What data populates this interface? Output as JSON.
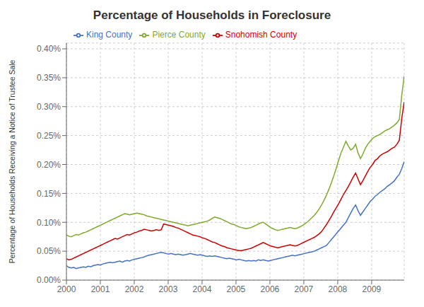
{
  "chart_data": {
    "type": "line",
    "title": "Percentage of Households in Foreclosure",
    "y_label": "Percentage of Households Receiving a Notice of Trustee Sale",
    "xlim": [
      2000.0,
      2009.96
    ],
    "xticks": [
      2000,
      2001,
      2002,
      2003,
      2004,
      2005,
      2006,
      2007,
      2008,
      2009
    ],
    "ylim": [
      0,
      0.0041
    ],
    "yticks": [
      {
        "value": 0.0,
        "label": "0.00%"
      },
      {
        "value": 0.0005,
        "label": "0.05%"
      },
      {
        "value": 0.001,
        "label": "0.10%"
      },
      {
        "value": 0.0015,
        "label": "0.15%"
      },
      {
        "value": 0.002,
        "label": "0.20%"
      },
      {
        "value": 0.0025,
        "label": "0.25%"
      },
      {
        "value": 0.003,
        "label": "0.30%"
      },
      {
        "value": 0.0035,
        "label": "0.35%"
      },
      {
        "value": 0.004,
        "label": "0.40%"
      }
    ],
    "grid": true,
    "legend": "upper left",
    "x": [
      2000.0,
      2000.07165,
      2000.14331,
      2000.21496,
      2000.28662,
      2000.35827,
      2000.42993,
      2000.50158,
      2000.57324,
      2000.64489,
      2000.71655,
      2000.7882,
      2000.85986,
      2000.93151,
      2001.00317,
      2001.07482,
      2001.14647,
      2001.21813,
      2001.28978,
      2001.36144,
      2001.43309,
      2001.50475,
      2001.5764,
      2001.64806,
      2001.71971,
      2001.79137,
      2001.86302,
      2001.93468,
      2002.00633,
      2002.07799,
      2002.14964,
      2002.22129,
      2002.29295,
      2002.3646,
      2002.43626,
      2002.50791,
      2002.57957,
      2002.65122,
      2002.72288,
      2002.79453,
      2002.86619,
      2002.93784,
      2003.0095,
      2003.08115,
      2003.15281,
      2003.22446,
      2003.29612,
      2003.36777,
      2003.43942,
      2003.51108,
      2003.58273,
      2003.65439,
      2003.72604,
      2003.7977,
      2003.86935,
      2003.94101,
      2004.01266,
      2004.08432,
      2004.15597,
      2004.22763,
      2004.29928,
      2004.37094,
      2004.44259,
      2004.51424,
      2004.5859,
      2004.65755,
      2004.72921,
      2004.80086,
      2004.87252,
      2004.94417,
      2005.01583,
      2005.08748,
      2005.15914,
      2005.23079,
      2005.30245,
      2005.3741,
      2005.44576,
      2005.51741,
      2005.58906,
      2005.66072,
      2005.73237,
      2005.80403,
      2005.87568,
      2005.94734,
      2006.01899,
      2006.09065,
      2006.1623,
      2006.23396,
      2006.30561,
      2006.37727,
      2006.44892,
      2006.52058,
      2006.59223,
      2006.66388,
      2006.73554,
      2006.80719,
      2006.87885,
      2006.9505,
      2007.02216,
      2007.09381,
      2007.16547,
      2007.23712,
      2007.30878,
      2007.38043,
      2007.45209,
      2007.52374,
      2007.5954,
      2007.66705,
      2007.73871,
      2007.81036,
      2007.88201,
      2007.95367,
      2008.02532,
      2008.09698,
      2008.16863,
      2008.24029,
      2008.31194,
      2008.3836,
      2008.45525,
      2008.52691,
      2008.59856,
      2008.67022,
      2008.74187,
      2008.81353,
      2008.88518,
      2008.95683,
      2009.02849,
      2009.10014,
      2009.1718,
      2009.24345,
      2009.31511,
      2009.38676,
      2009.45842,
      2009.53007,
      2009.60173,
      2009.67338,
      2009.74504,
      2009.81669,
      2009.88835,
      2009.96
    ],
    "series": [
      {
        "name": "King County",
        "color": "#4472C4",
        "values": [
          0.00025,
          0.00022,
          0.00021,
          0.00022,
          0.0002,
          0.00021,
          0.00022,
          0.00023,
          0.00022,
          0.00024,
          0.00023,
          0.00025,
          0.00026,
          0.00027,
          0.00026,
          0.00028,
          0.00029,
          0.0003,
          0.00031,
          0.0003,
          0.00031,
          0.00032,
          0.00033,
          0.00031,
          0.00033,
          0.00034,
          0.00033,
          0.00035,
          0.00036,
          0.00037,
          0.00038,
          0.00039,
          0.0004,
          0.00042,
          0.00043,
          0.00044,
          0.00045,
          0.00046,
          0.00047,
          0.00048,
          0.00047,
          0.00046,
          0.00045,
          0.00046,
          0.00045,
          0.00044,
          0.00045,
          0.00044,
          0.00043,
          0.00044,
          0.00045,
          0.00046,
          0.00045,
          0.00044,
          0.00043,
          0.00044,
          0.00043,
          0.00042,
          0.00041,
          0.00042,
          0.00041,
          0.00042,
          0.00041,
          0.0004,
          0.00039,
          0.00038,
          0.00037,
          0.00038,
          0.00037,
          0.00036,
          0.00035,
          0.00036,
          0.00035,
          0.00034,
          0.00033,
          0.00034,
          0.00033,
          0.00034,
          0.00033,
          0.00035,
          0.00034,
          0.00035,
          0.00034,
          0.00033,
          0.00034,
          0.00035,
          0.00036,
          0.00037,
          0.00038,
          0.00039,
          0.0004,
          0.00041,
          0.00042,
          0.00043,
          0.00042,
          0.00043,
          0.00044,
          0.00045,
          0.00046,
          0.00047,
          0.00048,
          0.00049,
          0.0005,
          0.00052,
          0.00054,
          0.00056,
          0.00058,
          0.0006,
          0.00065,
          0.0007,
          0.00075,
          0.0008,
          0.00085,
          0.0009,
          0.00095,
          0.001,
          0.00108,
          0.00116,
          0.00124,
          0.0013,
          0.0012,
          0.00112,
          0.00118,
          0.00124,
          0.0013,
          0.00136,
          0.0014,
          0.00145,
          0.00148,
          0.00152,
          0.00155,
          0.00158,
          0.00162,
          0.00165,
          0.00168,
          0.00172,
          0.00178,
          0.00183,
          0.00193,
          0.00205
        ]
      },
      {
        "name": "Snohomish County",
        "color": "#CC0000",
        "values": [
          0.00037,
          0.00035,
          0.00036,
          0.00038,
          0.0004,
          0.00042,
          0.00044,
          0.00046,
          0.00048,
          0.0005,
          0.00052,
          0.00054,
          0.00056,
          0.00058,
          0.0006,
          0.00062,
          0.00064,
          0.00066,
          0.00068,
          0.0007,
          0.00072,
          0.00071,
          0.00073,
          0.00075,
          0.00077,
          0.00079,
          0.00078,
          0.0008,
          0.00082,
          0.00083,
          0.00085,
          0.00086,
          0.00088,
          0.00087,
          0.00086,
          0.00085,
          0.00086,
          0.00087,
          0.00086,
          0.00087,
          0.00097,
          0.00096,
          0.00095,
          0.00094,
          0.00093,
          0.00091,
          0.0009,
          0.00088,
          0.00086,
          0.00084,
          0.00082,
          0.0008,
          0.00078,
          0.00077,
          0.00076,
          0.00075,
          0.00073,
          0.00072,
          0.0007,
          0.00068,
          0.00066,
          0.00065,
          0.00063,
          0.00061,
          0.00059,
          0.00058,
          0.00056,
          0.00055,
          0.00054,
          0.00053,
          0.00052,
          0.00051,
          0.00051,
          0.00052,
          0.00053,
          0.00054,
          0.00055,
          0.00057,
          0.00059,
          0.00061,
          0.00063,
          0.00065,
          0.00063,
          0.00061,
          0.00059,
          0.00058,
          0.00057,
          0.00056,
          0.00057,
          0.00058,
          0.00059,
          0.0006,
          0.00061,
          0.0006,
          0.00059,
          0.0006,
          0.00062,
          0.00064,
          0.00066,
          0.00068,
          0.0007,
          0.00072,
          0.00074,
          0.00077,
          0.0008,
          0.00084,
          0.0009,
          0.00096,
          0.00103,
          0.0011,
          0.00118,
          0.00125,
          0.00132,
          0.0014,
          0.00148,
          0.00155,
          0.00162,
          0.0017,
          0.00178,
          0.00185,
          0.00175,
          0.00165,
          0.00172,
          0.0018,
          0.00188,
          0.00195,
          0.002,
          0.00207,
          0.0021,
          0.00215,
          0.00218,
          0.0022,
          0.00222,
          0.00225,
          0.00228,
          0.0023,
          0.00235,
          0.00242,
          0.0028,
          0.00308
        ]
      },
      {
        "name": "Pierce County",
        "color": "#7EAA2C",
        "values": [
          0.00078,
          0.00076,
          0.00075,
          0.00077,
          0.00079,
          0.00078,
          0.0008,
          0.00082,
          0.00083,
          0.00085,
          0.00087,
          0.00089,
          0.00091,
          0.00093,
          0.00095,
          0.00097,
          0.00099,
          0.00101,
          0.00103,
          0.00105,
          0.00107,
          0.00109,
          0.00111,
          0.00113,
          0.00115,
          0.00114,
          0.00113,
          0.00114,
          0.00115,
          0.00116,
          0.00115,
          0.00114,
          0.00113,
          0.00111,
          0.0011,
          0.00109,
          0.00108,
          0.00107,
          0.00106,
          0.00105,
          0.00104,
          0.00103,
          0.00102,
          0.00101,
          0.001,
          0.00099,
          0.00098,
          0.00097,
          0.00096,
          0.00095,
          0.00094,
          0.00095,
          0.00096,
          0.00097,
          0.00098,
          0.00099,
          0.001,
          0.00101,
          0.00102,
          0.00104,
          0.00107,
          0.00109,
          0.00108,
          0.00107,
          0.00105,
          0.00103,
          0.00101,
          0.00099,
          0.00097,
          0.00096,
          0.00094,
          0.00092,
          0.00091,
          0.0009,
          0.00089,
          0.0009,
          0.00091,
          0.00093,
          0.00095,
          0.00097,
          0.00099,
          0.001,
          0.00097,
          0.00094,
          0.00091,
          0.00089,
          0.00087,
          0.00086,
          0.00087,
          0.00088,
          0.00089,
          0.0009,
          0.00091,
          0.0009,
          0.00089,
          0.0009,
          0.00092,
          0.00094,
          0.00097,
          0.001,
          0.00104,
          0.00108,
          0.00112,
          0.00117,
          0.00123,
          0.0013,
          0.00138,
          0.00147,
          0.00157,
          0.00168,
          0.0018,
          0.00193,
          0.00207,
          0.0022,
          0.0023,
          0.0024,
          0.00232,
          0.00225,
          0.00228,
          0.00235,
          0.0022,
          0.0021,
          0.00218,
          0.00228,
          0.00235,
          0.0024,
          0.00245,
          0.00248,
          0.0025,
          0.00252,
          0.00255,
          0.00258,
          0.0026,
          0.00262,
          0.00265,
          0.00268,
          0.00272,
          0.00278,
          0.0032,
          0.00353
        ]
      }
    ]
  }
}
